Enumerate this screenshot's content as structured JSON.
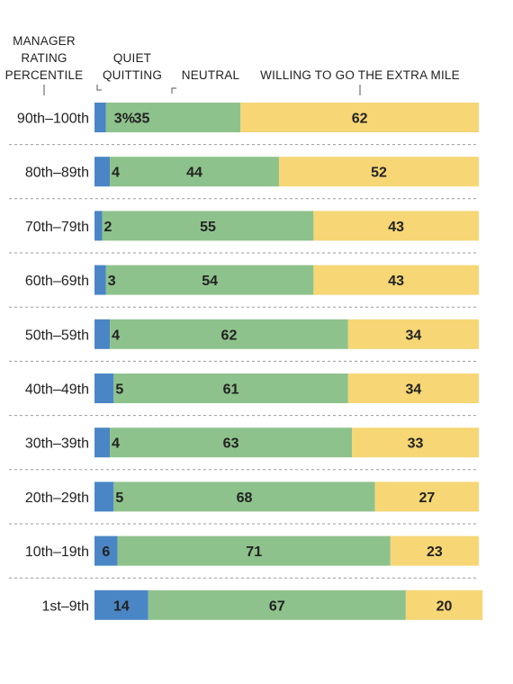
{
  "chart_data": {
    "type": "bar",
    "orientation": "horizontal",
    "stacked": true,
    "category_header": [
      "MANAGER",
      "RATING",
      "PERCENTILE"
    ],
    "categories": [
      "90th–100th",
      "80th–89th",
      "70th–79th",
      "60th–69th",
      "50th–59th",
      "40th–49th",
      "30th–39th",
      "20th–29th",
      "10th–19th",
      "1st–9th"
    ],
    "series": [
      {
        "name": "QUIET QUITTING",
        "header_lines": [
          "QUIET",
          "QUITTING"
        ],
        "color": "#4a86c5",
        "values": [
          3,
          4,
          2,
          3,
          4,
          5,
          4,
          5,
          6,
          14
        ],
        "labels": [
          "3%",
          "4",
          "2",
          "3",
          "4",
          "5",
          "4",
          "5",
          "6",
          "14"
        ]
      },
      {
        "name": "NEUTRAL",
        "header_lines": [
          "NEUTRAL"
        ],
        "color": "#8ec28c",
        "values": [
          35,
          44,
          55,
          54,
          62,
          61,
          63,
          68,
          71,
          67
        ],
        "labels": [
          "35",
          "44",
          "55",
          "54",
          "62",
          "61",
          "63",
          "68",
          "71",
          "67"
        ]
      },
      {
        "name": "WILLING TO GO THE EXTRA MILE",
        "header_lines": [
          "WILLING TO GO THE EXTRA MILE"
        ],
        "color": "#f6d675",
        "values": [
          62,
          52,
          43,
          43,
          34,
          34,
          33,
          27,
          23,
          20
        ],
        "labels": [
          "62",
          "52",
          "43",
          "43",
          "34",
          "34",
          "33",
          "27",
          "23",
          "20"
        ]
      }
    ],
    "xlim": [
      0,
      100
    ],
    "grid": false,
    "legend": "top (column headers)"
  }
}
